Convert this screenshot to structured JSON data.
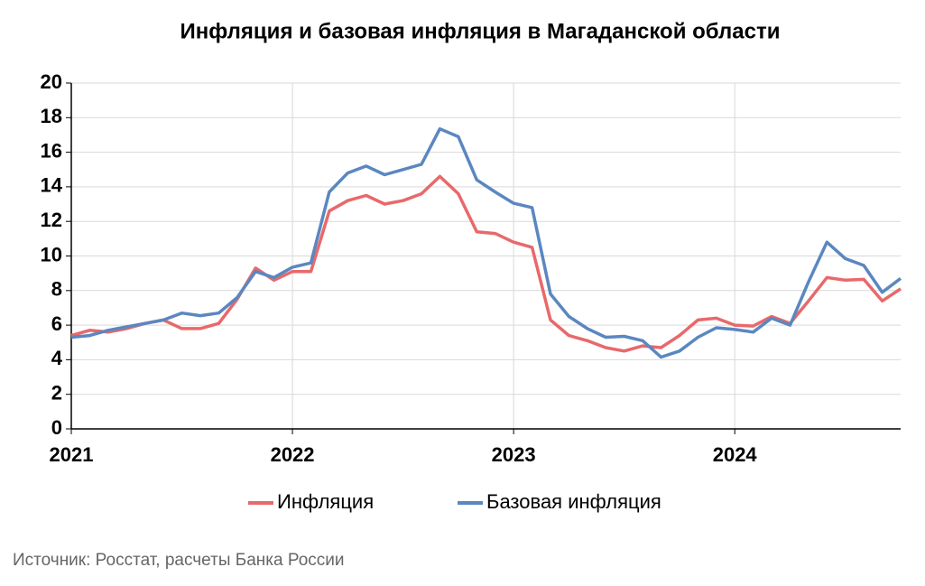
{
  "chart_data": {
    "type": "line",
    "title": "Инфляция и базовая инфляция в Магаданской области",
    "source": "Источник: Росстат, расчеты Банка России",
    "categories": [
      "2021",
      null,
      null,
      null,
      null,
      null,
      null,
      null,
      null,
      null,
      null,
      null,
      "2022",
      null,
      null,
      null,
      null,
      null,
      null,
      null,
      null,
      null,
      null,
      null,
      "2023",
      null,
      null,
      null,
      null,
      null,
      null,
      null,
      null,
      null,
      null,
      null,
      "2024",
      null,
      null,
      null,
      null,
      null,
      null,
      null,
      null,
      null
    ],
    "series": [
      {
        "name": "Инфляция",
        "color": "#e8696b",
        "values": [
          5.4,
          5.7,
          5.6,
          5.8,
          6.1,
          6.3,
          5.8,
          5.8,
          6.1,
          7.5,
          9.3,
          8.6,
          9.1,
          9.1,
          12.6,
          13.2,
          13.5,
          13.0,
          13.2,
          13.6,
          14.6,
          13.6,
          11.4,
          11.3,
          10.8,
          10.5,
          6.3,
          5.4,
          5.1,
          4.7,
          4.5,
          4.8,
          4.7,
          5.4,
          6.3,
          6.4,
          6.0,
          5.95,
          6.5,
          6.1,
          7.4,
          8.75,
          8.6,
          8.65,
          7.4,
          8.1
        ]
      },
      {
        "name": "Базовая инфляция",
        "color": "#5b87c0",
        "values": [
          5.3,
          5.4,
          5.7,
          5.9,
          6.1,
          6.3,
          6.7,
          6.55,
          6.7,
          7.6,
          9.1,
          8.75,
          9.35,
          9.6,
          13.7,
          14.8,
          15.2,
          14.7,
          15.0,
          15.3,
          17.35,
          16.9,
          14.4,
          13.7,
          13.05,
          12.8,
          7.8,
          6.5,
          5.8,
          5.3,
          5.35,
          5.1,
          4.15,
          4.5,
          5.3,
          5.85,
          5.75,
          5.6,
          6.4,
          6.0,
          8.5,
          10.8,
          9.85,
          9.45,
          7.9,
          8.7
        ]
      }
    ],
    "ylim": [
      0,
      20
    ],
    "yticks": [
      0,
      2,
      4,
      6,
      8,
      10,
      12,
      14,
      16,
      18,
      20
    ],
    "grid": true,
    "legend": "bottom"
  }
}
